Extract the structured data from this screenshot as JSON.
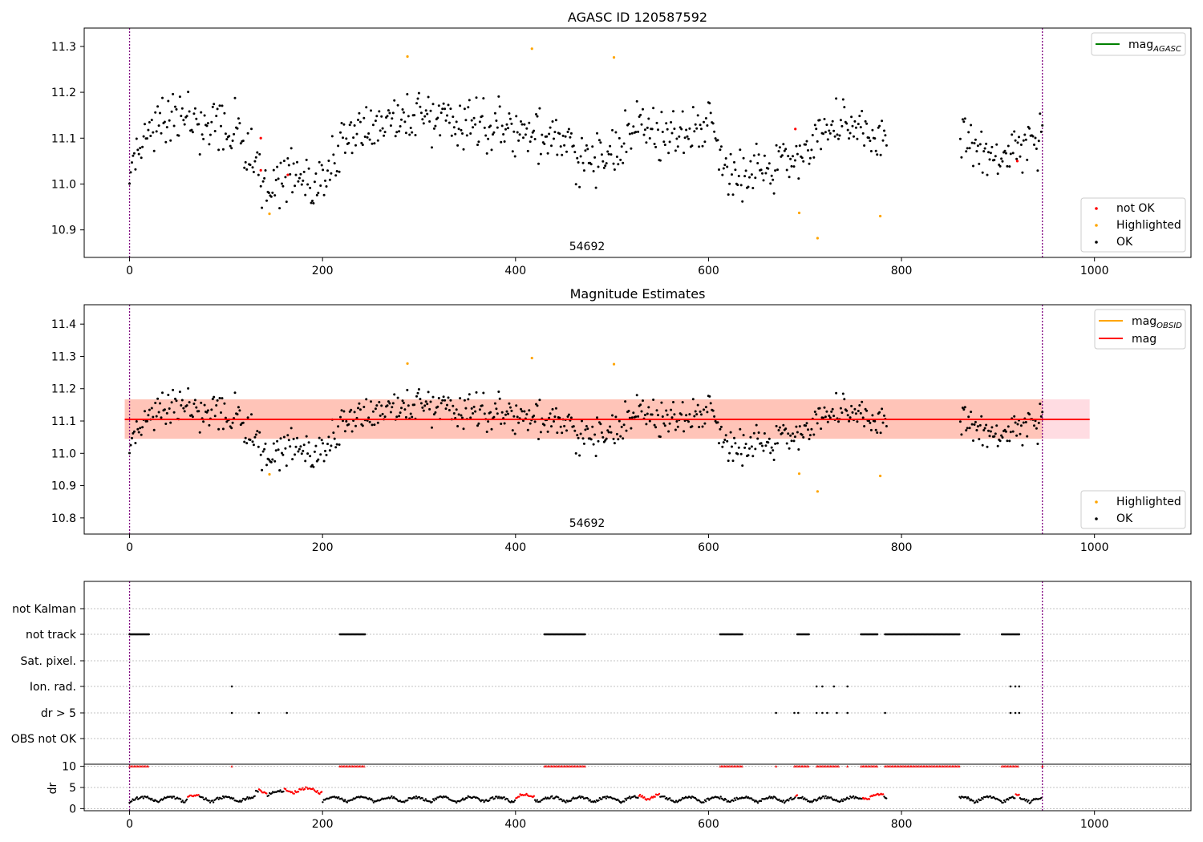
{
  "chart_data": [
    {
      "type": "scatter",
      "title": "AGASC ID 120587592",
      "xlim": [
        -47,
        1100
      ],
      "ylim": [
        10.84,
        11.34
      ],
      "x_ticks": [
        "0",
        "200",
        "400",
        "600",
        "800",
        "1000"
      ],
      "y_ticks": [
        "10.9",
        "11.0",
        "11.1",
        "11.2",
        "11.3"
      ],
      "annotation": "54692",
      "vlines": [
        0,
        946
      ],
      "legend_upper": {
        "position": "top-right",
        "entries": [
          {
            "label": "mag",
            "subscript": "AGASC",
            "color": "#008000"
          }
        ]
      },
      "legend_lower": {
        "position": "bottom-right",
        "entries": [
          {
            "label": "not OK",
            "color": "#ff0000"
          },
          {
            "label": "Highlighted",
            "color": "#ffa500"
          },
          {
            "label": "OK",
            "color": "#000000"
          }
        ]
      },
      "colors": {
        "ok": "#000000",
        "not_ok": "#ff0000",
        "highlighted": "#ffa500",
        "vline": "#800080"
      },
      "ok_series": {
        "x_start": 0,
        "x_end": 946,
        "segments": [
          [
            0,
            11.03
          ],
          [
            15,
            11.1
          ],
          [
            40,
            11.15
          ],
          [
            80,
            11.12
          ],
          [
            110,
            11.12
          ],
          [
            130,
            11.05
          ],
          [
            145,
            10.98
          ],
          [
            170,
            11.02
          ],
          [
            200,
            11.0
          ],
          [
            215,
            11.08
          ],
          [
            235,
            11.12
          ],
          [
            270,
            11.14
          ],
          [
            300,
            11.15
          ],
          [
            340,
            11.14
          ],
          [
            380,
            11.13
          ],
          [
            420,
            11.11
          ],
          [
            460,
            11.07
          ],
          [
            490,
            11.04
          ],
          [
            520,
            11.13
          ],
          [
            560,
            11.1
          ],
          [
            600,
            11.14
          ],
          [
            620,
            11.03
          ],
          [
            650,
            11.03
          ],
          [
            690,
            11.06
          ],
          [
            720,
            11.12
          ],
          [
            760,
            11.11
          ],
          [
            784,
            11.1
          ]
        ],
        "gap": [
          785,
          860
        ],
        "tail_segments": [
          [
            860,
            11.12
          ],
          [
            890,
            11.05
          ],
          [
            920,
            11.07
          ],
          [
            946,
            11.1
          ]
        ],
        "scatter": 0.055,
        "count": 780
      },
      "not_ok_points": [
        [
          136,
          11.1
        ],
        [
          136,
          11.03
        ],
        [
          164,
          11.02
        ],
        [
          690,
          11.12
        ],
        [
          920,
          11.05
        ]
      ],
      "highlighted_points": [
        [
          145,
          10.935
        ],
        [
          288,
          11.278
        ],
        [
          417,
          11.295
        ],
        [
          502,
          11.276
        ],
        [
          694,
          10.937
        ],
        [
          713,
          10.882
        ],
        [
          778,
          10.93
        ]
      ]
    },
    {
      "type": "scatter",
      "title": "Magnitude Estimates",
      "xlim": [
        -47,
        1100
      ],
      "ylim": [
        10.75,
        11.46
      ],
      "x_ticks": [
        "0",
        "200",
        "400",
        "600",
        "800",
        "1000"
      ],
      "y_ticks": [
        "10.8",
        "10.9",
        "11.0",
        "11.1",
        "11.2",
        "11.3",
        "11.4"
      ],
      "annotation": "54692",
      "vlines": [
        0,
        946
      ],
      "mag_line": {
        "y": 11.105,
        "x_range": [
          -5,
          995
        ],
        "color": "#ff0000"
      },
      "band_outer": {
        "y_range": [
          11.045,
          11.167
        ],
        "x_range": [
          -5,
          995
        ],
        "color": "#ffc0cb"
      },
      "band_inner": {
        "y_range": [
          11.045,
          11.167
        ],
        "x_range": [
          -5,
          946
        ],
        "color": "#ffa07a"
      },
      "legend_upper": {
        "position": "top-right",
        "entries": [
          {
            "label": "mag",
            "subscript": "OBSID",
            "color": "#ffa500"
          },
          {
            "label": "mag",
            "subscript": "",
            "color": "#ff0000"
          }
        ]
      },
      "legend_lower": {
        "position": "bottom-right",
        "entries": [
          {
            "label": "Highlighted",
            "color": "#ffa500"
          },
          {
            "label": "OK",
            "color": "#000000"
          }
        ]
      }
    },
    {
      "type": "scatter",
      "xlim": [
        -47,
        1100
      ],
      "x_ticks": [
        "0",
        "200",
        "400",
        "600",
        "800",
        "1000"
      ],
      "flag_labels": [
        "not Kalman",
        "not track",
        "Sat. pixel.",
        "Ion. rad.",
        "dr > 5",
        "OBS not OK"
      ],
      "flags": {
        "not track": [
          [
            0,
            20
          ],
          [
            218,
            244
          ],
          [
            430,
            472
          ],
          [
            612,
            635
          ],
          [
            692,
            704
          ],
          [
            758,
            775
          ],
          [
            783,
            860
          ],
          [
            904,
            922
          ]
        ],
        "Ion. rad.": [
          [
            106
          ],
          [
            712
          ],
          [
            718
          ],
          [
            730
          ],
          [
            744
          ],
          [
            913
          ],
          [
            918
          ],
          [
            922
          ]
        ],
        "dr > 5": [
          [
            106
          ],
          [
            134
          ],
          [
            163
          ],
          [
            670
          ],
          [
            689
          ],
          [
            693
          ],
          [
            712
          ],
          [
            718
          ],
          [
            723
          ],
          [
            733
          ],
          [
            744
          ],
          [
            783
          ],
          [
            913
          ],
          [
            918
          ],
          [
            922
          ]
        ]
      },
      "dr_panel": {
        "ylabel": "dr",
        "y_ticks": [
          "0",
          "5",
          "10"
        ],
        "ylim": [
          -0.5,
          10.5
        ],
        "clipped_value": 10,
        "clipped_ranges": [
          [
            0,
            20
          ],
          [
            106,
            107
          ],
          [
            218,
            244
          ],
          [
            430,
            472
          ],
          [
            612,
            635
          ],
          [
            670,
            671
          ],
          [
            689,
            704
          ],
          [
            712,
            735
          ],
          [
            744,
            745
          ],
          [
            758,
            775
          ],
          [
            783,
            860
          ],
          [
            904,
            922
          ],
          [
            946,
            947
          ]
        ],
        "red_ranges": [
          [
            60,
            72
          ],
          [
            134,
            142
          ],
          [
            160,
            200
          ],
          [
            400,
            420
          ],
          [
            528,
            550
          ],
          [
            690,
            692
          ],
          [
            760,
            782
          ],
          [
            918,
            922
          ]
        ]
      }
    }
  ]
}
